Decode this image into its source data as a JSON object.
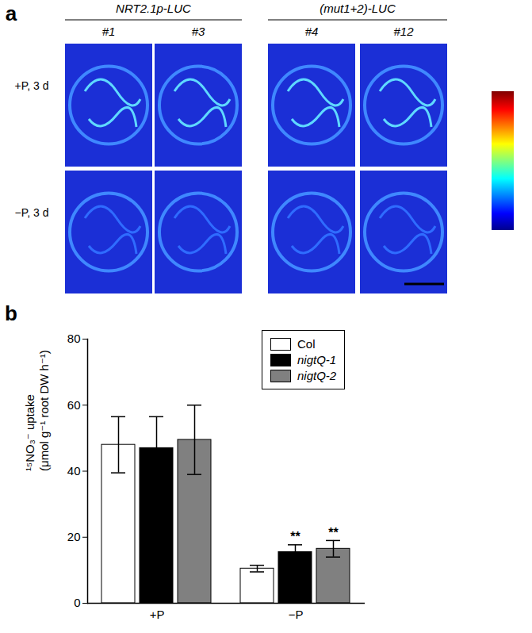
{
  "panel_a": {
    "label": "a",
    "groups": [
      {
        "title": "NRT2.1p-LUC",
        "lines": [
          "#1",
          "#3"
        ]
      },
      {
        "title": "(mut1+2)-LUC",
        "lines": [
          "#4",
          "#12"
        ]
      }
    ],
    "rows": [
      "+P, 3 d",
      "−P, 3 d"
    ]
  },
  "chart_data": {
    "type": "bar",
    "panel_label": "b",
    "y_label": [
      "¹⁵NO₃⁻ uptake",
      "(μmol g⁻¹ root DW h⁻¹)"
    ],
    "categories": [
      "+P",
      "−P"
    ],
    "series": [
      {
        "name": "Col",
        "color": "#ffffff",
        "values": [
          48,
          10.5
        ],
        "errors": [
          8.5,
          1
        ],
        "significance": [
          null,
          null
        ]
      },
      {
        "name": "nigtQ-1",
        "color": "#000000",
        "values": [
          47,
          15.5
        ],
        "errors": [
          9.5,
          2.2
        ],
        "significance": [
          null,
          "**"
        ]
      },
      {
        "name": "nigtQ-2",
        "color": "#808080",
        "values": [
          49.5,
          16.5
        ],
        "errors": [
          10.5,
          2.5
        ],
        "significance": [
          null,
          "**"
        ]
      }
    ],
    "ylim": [
      0,
      80
    ],
    "yticks": [
      0,
      20,
      40,
      60,
      80
    ],
    "legend": "top-right"
  }
}
